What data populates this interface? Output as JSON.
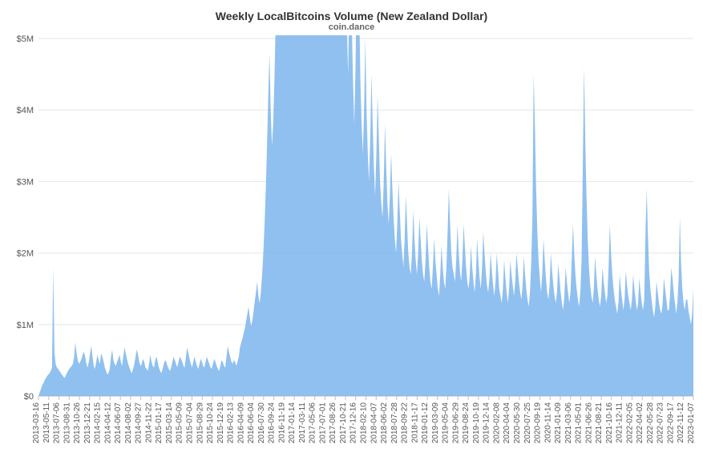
{
  "chart": {
    "type": "area",
    "title": "Weekly LocalBitcoins Volume (New Zealand Dollar)",
    "subtitle": "coin.dance",
    "title_fontsize": 14,
    "title_color": "#333333",
    "subtitle_fontsize": 11,
    "subtitle_color": "#666666",
    "background_color": "#ffffff",
    "plot_background_color": "#ffffff",
    "series_color": "#7cb5ec",
    "series_fill_opacity": 0.85,
    "series_stroke_width": 0,
    "grid_color": "#e6e6e6",
    "axis_line_color": "#c0c0c0",
    "ytick_fontsize": 11,
    "xtick_fontsize": 10,
    "tick_label_color": "#555555",
    "ylim": [
      0,
      5000000
    ],
    "ytick_step": 1000000,
    "ytick_labels": [
      "$0",
      "$1M",
      "$2M",
      "$3M",
      "$4M",
      "$5M"
    ],
    "xcategories": [
      "2013-03-16",
      "2013-05-11",
      "2013-07-06",
      "2013-08-31",
      "2013-10-26",
      "2013-12-21",
      "2014-02-15",
      "2014-04-12",
      "2014-06-07",
      "2014-08-02",
      "2014-09-27",
      "2014-11-22",
      "2015-01-17",
      "2015-03-14",
      "2015-05-09",
      "2015-07-04",
      "2015-08-29",
      "2015-10-24",
      "2015-12-19",
      "2016-02-13",
      "2016-04-09",
      "2016-06-04",
      "2016-07-30",
      "2016-09-24",
      "2016-11-19",
      "2017-01-14",
      "2017-03-11",
      "2017-05-06",
      "2017-07-01",
      "2017-08-26",
      "2017-10-21",
      "2017-12-16",
      "2018-02-10",
      "2018-04-07",
      "2018-06-02",
      "2018-07-28",
      "2018-09-22",
      "2018-11-17",
      "2019-01-12",
      "2019-03-09",
      "2019-05-04",
      "2019-06-29",
      "2019-08-24",
      "2019-10-19",
      "2019-12-14",
      "2020-02-08",
      "2020-04-04",
      "2020-05-30",
      "2020-07-25",
      "2020-09-19",
      "2020-11-14",
      "2021-01-09",
      "2021-03-06",
      "2021-05-01",
      "2021-06-26",
      "2021-08-21",
      "2021-10-16",
      "2021-12-11",
      "2022-02-05",
      "2022-04-02",
      "2022-05-28",
      "2022-07-23",
      "2022-09-17",
      "2022-11-12",
      "2023-01-07"
    ],
    "values": [
      0,
      5,
      10,
      15,
      18,
      22,
      25,
      28,
      30,
      32,
      35,
      40,
      180,
      60,
      45,
      40,
      38,
      35,
      33,
      30,
      28,
      25,
      28,
      32,
      35,
      38,
      40,
      42,
      45,
      55,
      75,
      60,
      50,
      45,
      48,
      52,
      58,
      62,
      55,
      45,
      40,
      48,
      60,
      70,
      55,
      42,
      38,
      48,
      58,
      50,
      45,
      60,
      55,
      48,
      40,
      35,
      30,
      32,
      38,
      55,
      65,
      50,
      45,
      42,
      48,
      52,
      58,
      48,
      42,
      55,
      68,
      60,
      52,
      45,
      40,
      35,
      32,
      38,
      45,
      55,
      65,
      58,
      48,
      42,
      45,
      52,
      48,
      40,
      38,
      35,
      45,
      58,
      48,
      42,
      40,
      50,
      55,
      48,
      40,
      35,
      32,
      38,
      45,
      50,
      48,
      42,
      38,
      35,
      40,
      48,
      55,
      50,
      45,
      40,
      48,
      55,
      52,
      48,
      42,
      40,
      55,
      68,
      60,
      52,
      45,
      40,
      48,
      55,
      48,
      42,
      38,
      45,
      52,
      48,
      42,
      40,
      48,
      55,
      50,
      45,
      40,
      38,
      45,
      52,
      48,
      42,
      38,
      35,
      42,
      50,
      48,
      42,
      40,
      55,
      70,
      62,
      55,
      48,
      45,
      50,
      48,
      42,
      48,
      55,
      68,
      75,
      80,
      88,
      95,
      105,
      115,
      125,
      110,
      98,
      105,
      118,
      132,
      145,
      160,
      140,
      130,
      145,
      170,
      200,
      240,
      290,
      350,
      420,
      480,
      400,
      350,
      380,
      440,
      520,
      620,
      700,
      600,
      520,
      580,
      680,
      800,
      900,
      750,
      680,
      780,
      920,
      1100,
      1320,
      1080,
      900,
      1050,
      1280,
      1550,
      1850,
      2150,
      1800,
      1500,
      1700,
      1950,
      2200,
      1900,
      1600,
      1850,
      2250,
      2750,
      3900,
      2900,
      2100,
      2500,
      3850,
      4200,
      2800,
      2100,
      1600,
      1900,
      1400,
      1100,
      1350,
      1700,
      1250,
      980,
      820,
      700,
      850,
      1020,
      780,
      640,
      560,
      650,
      800,
      620,
      520,
      450,
      550,
      680,
      520,
      440,
      380,
      460,
      580,
      720,
      550,
      440,
      380,
      340,
      400,
      500,
      400,
      340,
      300,
      360,
      450,
      380,
      320,
      280,
      340,
      420,
      360,
      300,
      270,
      250,
      300,
      380,
      320,
      270,
      240,
      280,
      340,
      290,
      250,
      220,
      200,
      240,
      300,
      260,
      220,
      200,
      180,
      220,
      280,
      240,
      200,
      180,
      170,
      200,
      260,
      220,
      190,
      170,
      200,
      250,
      220,
      190,
      170,
      160,
      190,
      240,
      210,
      180,
      160,
      150,
      180,
      220,
      190,
      170,
      150,
      140,
      170,
      210,
      180,
      160,
      150,
      180,
      230,
      290,
      240,
      200,
      180,
      170,
      160,
      190,
      240,
      200,
      175,
      160,
      190,
      240,
      210,
      180,
      160,
      150,
      170,
      210,
      180,
      160,
      145,
      170,
      220,
      190,
      165,
      150,
      180,
      230,
      200,
      175,
      155,
      145,
      165,
      200,
      175,
      155,
      140,
      160,
      200,
      175,
      150,
      140,
      130,
      150,
      190,
      165,
      145,
      130,
      150,
      190,
      170,
      155,
      140,
      160,
      200,
      180,
      160,
      145,
      135,
      155,
      195,
      170,
      150,
      135,
      125,
      145,
      185,
      250,
      450,
      380,
      290,
      230,
      190,
      165,
      145,
      170,
      220,
      190,
      165,
      145,
      135,
      155,
      200,
      175,
      155,
      140,
      130,
      145,
      185,
      165,
      145,
      130,
      120,
      140,
      180,
      160,
      145,
      130,
      145,
      190,
      240,
      200,
      170,
      150,
      135,
      125,
      145,
      190,
      320,
      460,
      360,
      280,
      220,
      180,
      155,
      140,
      130,
      150,
      195,
      170,
      150,
      135,
      125,
      140,
      180,
      160,
      145,
      130,
      140,
      180,
      240,
      200,
      170,
      150,
      135,
      125,
      115,
      130,
      170,
      150,
      135,
      120,
      135,
      175,
      155,
      140,
      130,
      120,
      135,
      170,
      150,
      135,
      120,
      130,
      165,
      145,
      130,
      120,
      135,
      225,
      290,
      225,
      175,
      150,
      135,
      120,
      110,
      125,
      160,
      145,
      130,
      120,
      115,
      130,
      165,
      150,
      135,
      120,
      120,
      140,
      180,
      165,
      145,
      130,
      115,
      130,
      165,
      250,
      185,
      150,
      130,
      120,
      135,
      135,
      120,
      110,
      100,
      115,
      150
    ],
    "value_scale": 10000
  }
}
